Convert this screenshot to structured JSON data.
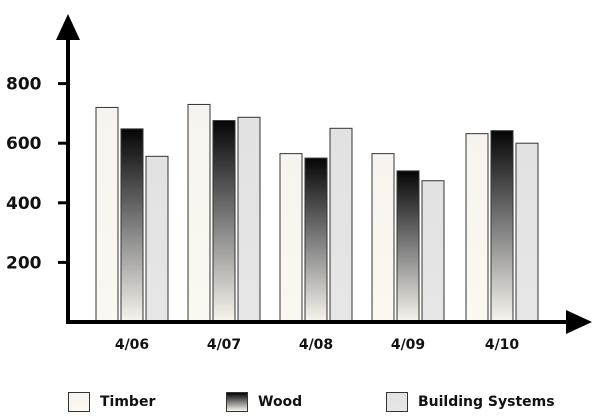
{
  "chart_data": {
    "type": "bar",
    "categories": [
      "4/06",
      "4/07",
      "4/08",
      "4/09",
      "4/10"
    ],
    "series": [
      {
        "name": "Timber",
        "values": [
          720,
          730,
          565,
          565,
          632
        ]
      },
      {
        "name": "Wood",
        "values": [
          648,
          676,
          550,
          507,
          642
        ]
      },
      {
        "name": "Building Systems",
        "values": [
          556,
          687,
          650,
          474,
          600
        ]
      }
    ],
    "y_ticks": [
      "200",
      "400",
      "600",
      "800"
    ],
    "ylim": [
      0,
      1000
    ],
    "grid": false,
    "legend": "bottom"
  }
}
